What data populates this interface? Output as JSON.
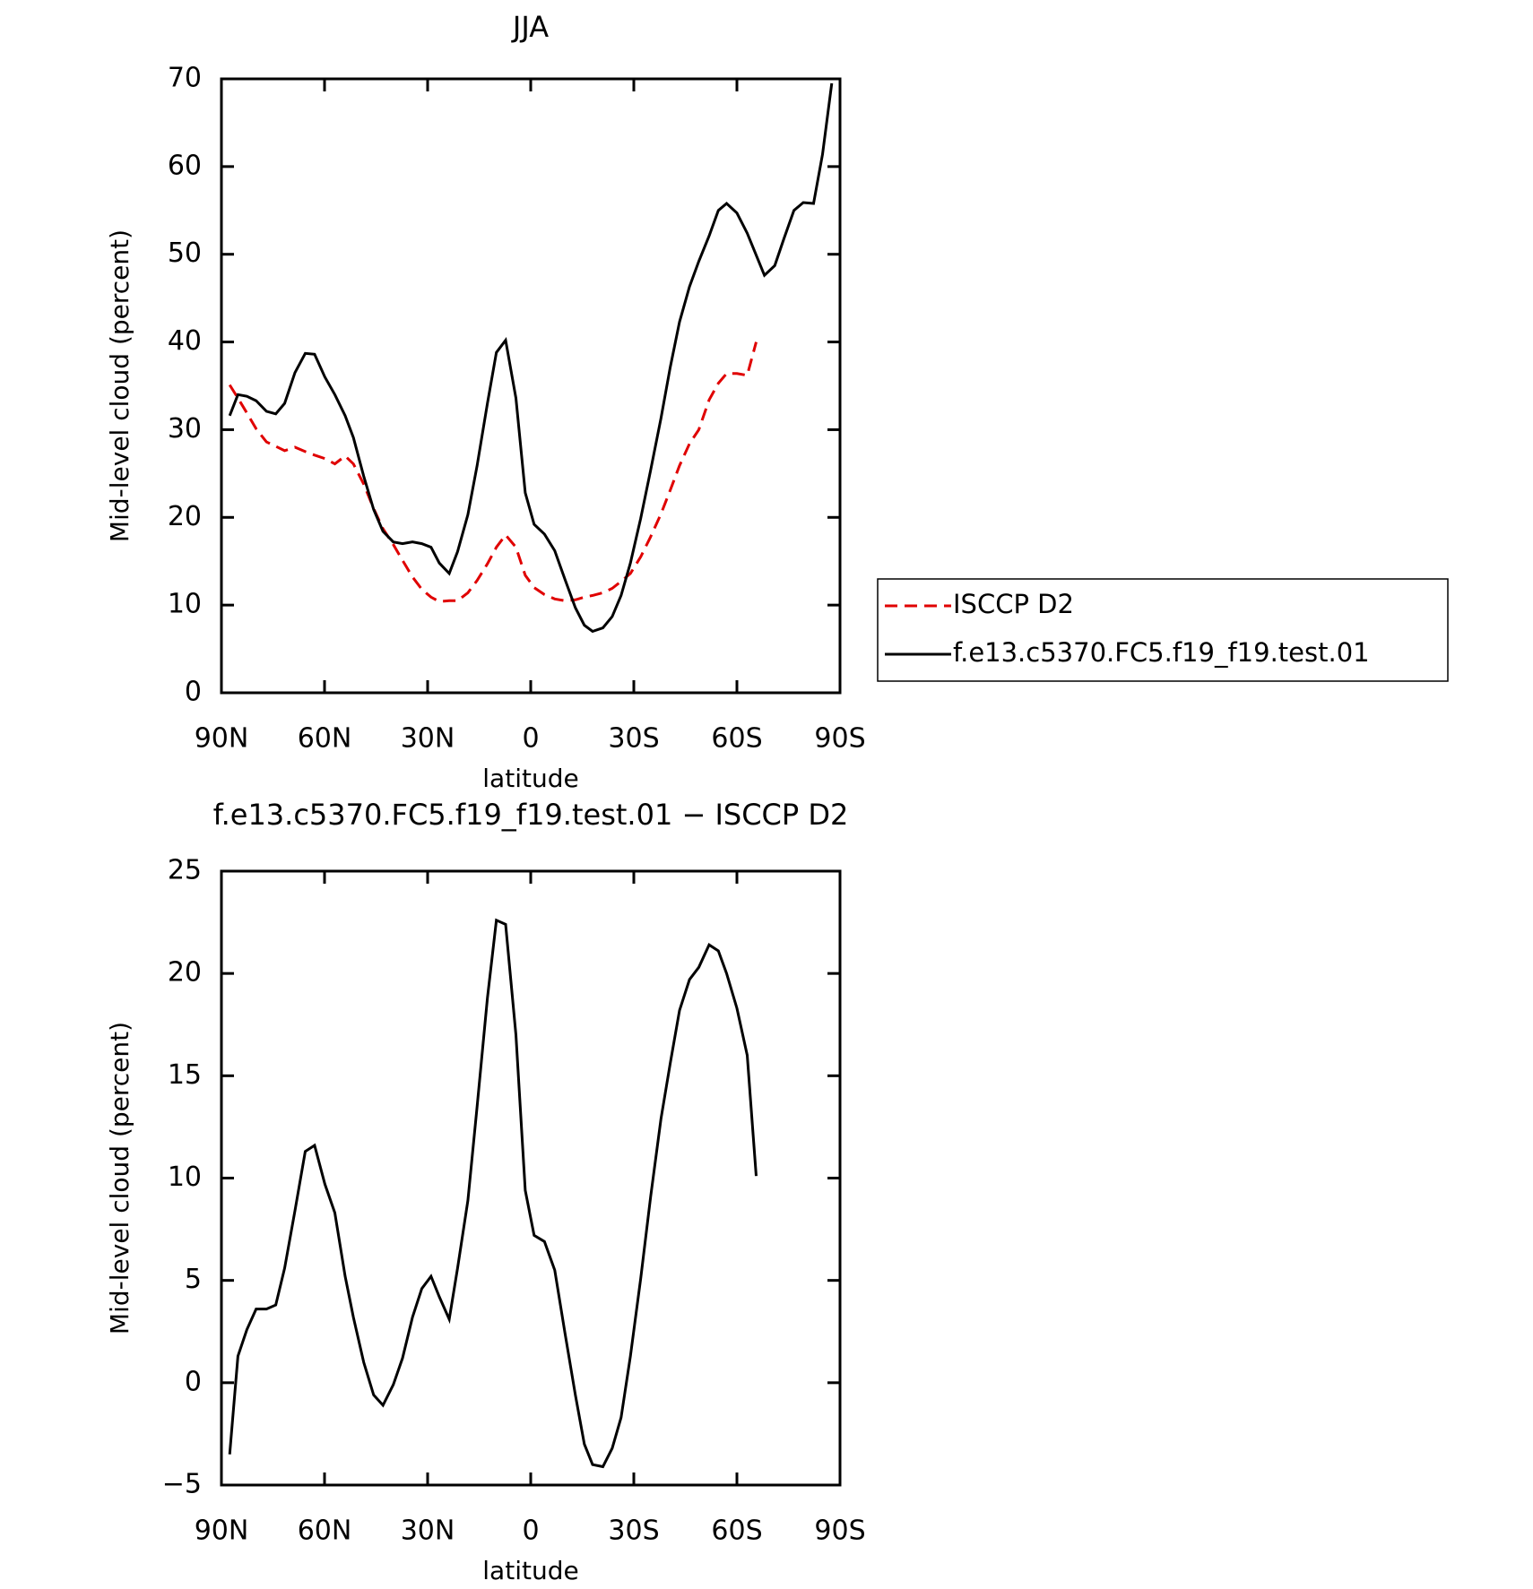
{
  "chart_data": [
    {
      "type": "line",
      "title": "JJA",
      "xlabel": "latitude",
      "ylabel": "Mid-level cloud (percent)",
      "x": [
        87.6,
        85.2,
        82.6,
        79.9,
        76.9,
        74.2,
        71.6,
        68.6,
        65.6,
        62.9,
        59.9,
        57.0,
        54.0,
        51.6,
        48.6,
        45.7,
        43.0,
        40.0,
        37.3,
        34.4,
        31.7,
        29.0,
        26.6,
        23.7,
        21.3,
        18.3,
        15.6,
        12.6,
        10.0,
        7.3,
        4.3,
        1.6,
        -1.0,
        -4.0,
        -7.0,
        -10.0,
        -13.0,
        -15.6,
        -18.0,
        -21.0,
        -23.7,
        -26.3,
        -29.0,
        -32.0,
        -34.9,
        -37.9,
        -40.6,
        -43.3,
        -46.2,
        -48.9,
        -51.9,
        -54.6,
        -57.0,
        -60.0,
        -63.0,
        -65.6,
        -68.0,
        -71.0,
        -73.7,
        -76.6,
        -79.3,
        -82.3,
        -84.9,
        -87.6
      ],
      "series": [
        {
          "name": "ISCCP D2",
          "color": "#e00000",
          "dash": true,
          "values": [
            35.1,
            33.6,
            31.9,
            30.1,
            28.6,
            28.1,
            27.6,
            28.0,
            27.5,
            27.1,
            26.7,
            26.1,
            27.0,
            26.1,
            23.8,
            21.0,
            18.7,
            16.9,
            15.1,
            13.2,
            11.8,
            10.9,
            10.4,
            10.5,
            10.5,
            11.4,
            12.8,
            14.7,
            16.6,
            18.0,
            16.6,
            13.4,
            12.0,
            11.2,
            10.7,
            10.5,
            10.6,
            10.9,
            11.1,
            11.4,
            11.9,
            12.7,
            13.6,
            15.5,
            17.8,
            20.4,
            23.1,
            25.9,
            28.4,
            30.0,
            33.4,
            35.3,
            36.4,
            36.4,
            36.2,
            40.0,
            null,
            null,
            null,
            null,
            null,
            null,
            null,
            null
          ]
        },
        {
          "name": "f.e13.c5370.FC5.f19_f19.test.01",
          "color": "#000000",
          "dash": false,
          "values": [
            31.6,
            34.0,
            33.8,
            33.3,
            32.1,
            31.8,
            33.0,
            36.5,
            38.7,
            38.6,
            36.0,
            34.0,
            31.6,
            29.1,
            24.7,
            20.9,
            18.4,
            17.2,
            17.0,
            17.2,
            17.0,
            16.6,
            14.8,
            13.6,
            16.1,
            20.3,
            25.9,
            33.0,
            38.8,
            40.2,
            33.6,
            22.8,
            19.2,
            18.1,
            16.2,
            12.9,
            9.7,
            7.7,
            7.0,
            7.4,
            8.7,
            11.1,
            14.8,
            19.9,
            25.4,
            31.3,
            37.1,
            42.3,
            46.3,
            49.2,
            52.1,
            55.0,
            55.8,
            54.7,
            52.4,
            49.9,
            47.6,
            48.7,
            51.8,
            55.0,
            55.9,
            55.8,
            61.4,
            69.5
          ]
        }
      ],
      "xlim": [
        90,
        -90
      ],
      "xticks": [
        {
          "value": 90,
          "label": "90N"
        },
        {
          "value": 60,
          "label": "60N"
        },
        {
          "value": 30,
          "label": "30N"
        },
        0,
        {
          "value": -30,
          "label": "30S"
        },
        {
          "value": -60,
          "label": "60S"
        },
        {
          "value": -90,
          "label": "90S"
        }
      ],
      "ylim": [
        0,
        70
      ],
      "yticks": [
        0,
        10,
        20,
        30,
        40,
        50,
        60,
        70
      ],
      "legend": "right"
    },
    {
      "type": "line",
      "title": "f.e13.c5370.FC5.f19_f19.test.01 − ISCCP D2",
      "xlabel": "latitude",
      "ylabel": "Mid-level cloud (percent)",
      "x": [
        87.6,
        85.2,
        82.6,
        79.9,
        76.9,
        74.2,
        71.6,
        68.6,
        65.6,
        62.9,
        59.9,
        57.0,
        54.0,
        51.6,
        48.6,
        45.7,
        43.0,
        40.0,
        37.3,
        34.4,
        31.7,
        29.0,
        26.6,
        23.7,
        21.3,
        18.3,
        15.6,
        12.6,
        10.0,
        7.3,
        4.3,
        1.6,
        -1.0,
        -4.0,
        -7.0,
        -10.0,
        -13.0,
        -15.6,
        -18.0,
        -21.0,
        -23.7,
        -26.3,
        -29.0,
        -32.0,
        -34.9,
        -37.9,
        -40.6,
        -43.3,
        -46.2,
        -48.9,
        -51.9,
        -54.6,
        -57.0,
        -60.0,
        -63.0,
        -65.6
      ],
      "series": [
        {
          "color": "#000000",
          "dash": false,
          "values": [
            -3.5,
            1.3,
            2.6,
            3.6,
            3.6,
            3.8,
            5.6,
            8.4,
            11.3,
            11.6,
            9.7,
            8.3,
            5.2,
            3.2,
            1.0,
            -0.6,
            -1.1,
            -0.1,
            1.2,
            3.2,
            4.6,
            5.2,
            4.2,
            3.1,
            5.6,
            8.9,
            13.5,
            18.8,
            22.6,
            22.4,
            17.0,
            9.4,
            7.2,
            6.9,
            5.5,
            2.4,
            -0.6,
            -3.0,
            -4.0,
            -4.1,
            -3.2,
            -1.7,
            1.3,
            5.1,
            9.1,
            12.9,
            15.6,
            18.2,
            19.7,
            20.3,
            21.4,
            21.1,
            20.0,
            18.3,
            16.0,
            10.1
          ]
        }
      ],
      "xlim": [
        90,
        -90
      ],
      "xticks": [
        {
          "value": 90,
          "label": "90N"
        },
        {
          "value": 60,
          "label": "60N"
        },
        {
          "value": 30,
          "label": "30N"
        },
        0,
        {
          "value": -30,
          "label": "30S"
        },
        {
          "value": -60,
          "label": "60S"
        },
        {
          "value": -90,
          "label": "90S"
        }
      ],
      "ylim": [
        -5,
        25
      ],
      "yticks": [
        {
          "value": -5,
          "label": "−5"
        },
        0,
        5,
        10,
        15,
        20,
        25
      ]
    }
  ]
}
